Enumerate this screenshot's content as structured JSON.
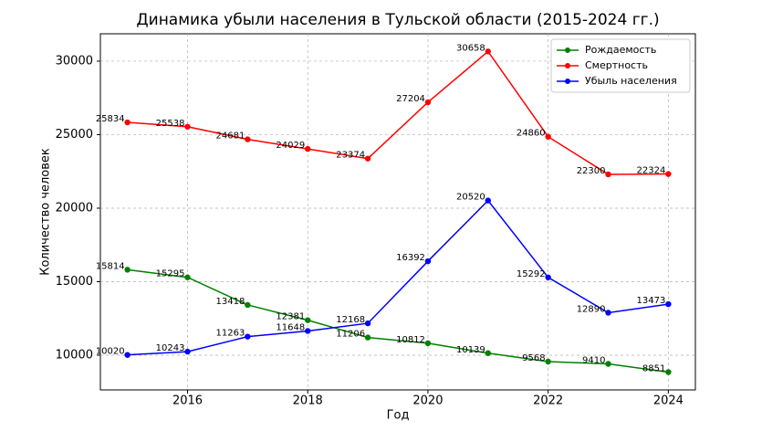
{
  "chart_data": {
    "type": "line",
    "title": "Динамика убыли населения в Тульской области (2015-2024 гг.)",
    "x_label": "Год",
    "y_label": "Количество человек",
    "x": [
      2015,
      2016,
      2017,
      2018,
      2019,
      2020,
      2021,
      2022,
      2023,
      2024
    ],
    "series": [
      {
        "name": "Рождаемость",
        "color": "#008000",
        "values": [
          15814,
          15295,
          13418,
          12381,
          11206,
          10812,
          10139,
          9568,
          9410,
          8851
        ]
      },
      {
        "name": "Смертность",
        "color": "#ff0000",
        "values": [
          25834,
          25538,
          24681,
          24029,
          23374,
          27204,
          30658,
          24860,
          22300,
          22324
        ]
      },
      {
        "name": "Убыль населения",
        "color": "#0000ff",
        "values": [
          10020,
          10243,
          11263,
          11648,
          12168,
          16392,
          20520,
          15292,
          12890,
          13473
        ]
      }
    ],
    "xlim": [
      2014.55,
      2024.45
    ],
    "xticks": [
      2016,
      2018,
      2020,
      2022,
      2024
    ],
    "ylim": [
      7640,
      31860
    ],
    "yticks": [
      10000,
      15000,
      20000,
      25000,
      30000
    ],
    "grid": true,
    "legend": "upper right",
    "data_labels": true
  }
}
